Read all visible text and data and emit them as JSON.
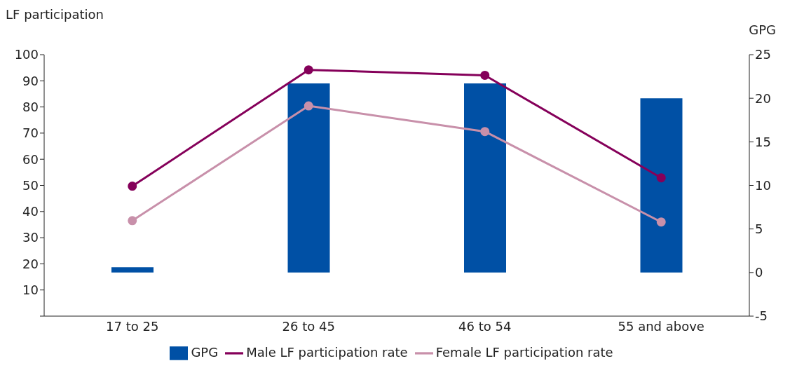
{
  "chart_data": {
    "type": "bar",
    "ylabel": "LF participation",
    "y2label": "GPG",
    "categories": [
      "17 to 25",
      "26 to 45",
      "46 to 54",
      "55 and above"
    ],
    "series": [
      {
        "name": "GPG",
        "axis": "y2",
        "color": "#0050a5",
        "values": [
          0.6,
          21.7,
          21.7,
          20.0
        ]
      },
      {
        "name": "Male LF participation rate",
        "type": "line",
        "color": "#85005a",
        "values": [
          49.7,
          94.2,
          92.1,
          52.9
        ]
      },
      {
        "name": "Female LF participation rate",
        "type": "line",
        "color": "#c890aa",
        "values": [
          36.5,
          80.4,
          70.6,
          36.0
        ]
      }
    ],
    "ylim": [
      0,
      100
    ],
    "yticks": [
      {
        "value": 0,
        "label": null
      },
      10,
      20,
      30,
      40,
      50,
      60,
      70,
      80,
      90,
      100
    ],
    "y2lim": [
      -5,
      25
    ],
    "y2ticks": [
      -5,
      0,
      5,
      10,
      15,
      20,
      25
    ],
    "legend": "bottom",
    "marker": "circle",
    "line_style": "solid"
  }
}
